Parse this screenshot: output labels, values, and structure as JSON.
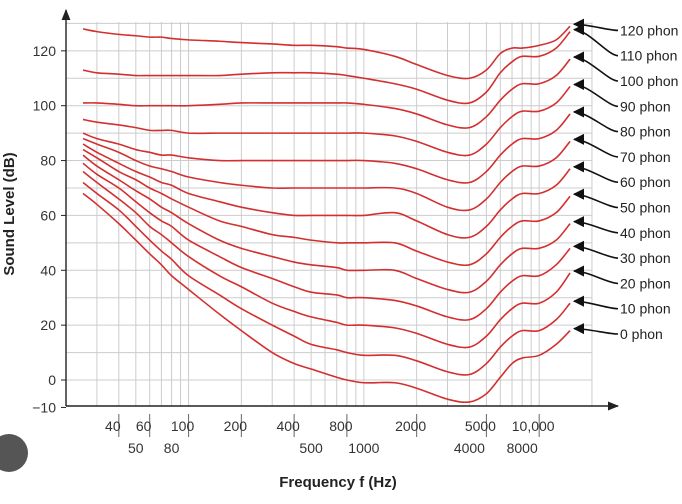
{
  "colors": {
    "curve": "#d32f2f",
    "grid": "#cccccc",
    "axis": "#222222",
    "arrow": "#111111",
    "text": "#333333"
  },
  "chart_data": {
    "type": "line",
    "title": "",
    "xlabel": "Frequency f (Hz)",
    "ylabel": "Sound Level (dB)",
    "x_scale": "log",
    "xlim": [
      20,
      20000
    ],
    "ylim": [
      -10,
      130
    ],
    "grid": true,
    "x_ticks_upper": [
      "40",
      "60",
      "100",
      "200",
      "400",
      "800",
      "2000",
      "5000",
      "10,000"
    ],
    "x_ticks_lower": [
      "50",
      "80",
      "500",
      "1000",
      "4000",
      "8000"
    ],
    "y_ticks": [
      "120",
      "100",
      "80",
      "60",
      "40",
      "20",
      "0",
      "−10"
    ],
    "x": [
      25,
      30,
      40,
      50,
      60,
      70,
      80,
      100,
      150,
      200,
      300,
      400,
      500,
      700,
      800,
      1000,
      1500,
      2000,
      3000,
      4000,
      5000,
      6000,
      7000,
      8000,
      10000,
      12500,
      15000
    ],
    "series": [
      {
        "name": "0 phon",
        "values": [
          68,
          64,
          57,
          51,
          46,
          42,
          38,
          33,
          24,
          18,
          10,
          6,
          4,
          1,
          0,
          -1,
          -1,
          -3,
          -7,
          -8,
          -5,
          1,
          6,
          8,
          9,
          13,
          18
        ]
      },
      {
        "name": "10 phon",
        "values": [
          72,
          68,
          62,
          56,
          51,
          47,
          44,
          38,
          31,
          26,
          20,
          16,
          13,
          11,
          10,
          9,
          9,
          7,
          3,
          2,
          6,
          12,
          16,
          18,
          18,
          22,
          28
        ]
      },
      {
        "name": "20 phon",
        "values": [
          76,
          72,
          66,
          61,
          56,
          53,
          50,
          45,
          38,
          34,
          28,
          25,
          23,
          21,
          20,
          20,
          19,
          17,
          13,
          12,
          16,
          22,
          26,
          28,
          28,
          32,
          39
        ]
      },
      {
        "name": "30 phon",
        "values": [
          79,
          75,
          70,
          65,
          61,
          58,
          56,
          51,
          45,
          41,
          37,
          34,
          32,
          31,
          30,
          30,
          29,
          27,
          23,
          22,
          26,
          32,
          36,
          38,
          38,
          42,
          48
        ]
      },
      {
        "name": "40 phon",
        "values": [
          82,
          78,
          73,
          69,
          66,
          63,
          61,
          57,
          51,
          48,
          45,
          43,
          42,
          41,
          40,
          40,
          40,
          37,
          33,
          32,
          36,
          42,
          46,
          48,
          48,
          51,
          57
        ]
      },
      {
        "name": "50 phon",
        "values": [
          84,
          81,
          76,
          73,
          70,
          68,
          66,
          63,
          58,
          56,
          53,
          52,
          51,
          50,
          50,
          50,
          50,
          47,
          43,
          42,
          46,
          52,
          56,
          58,
          58,
          61,
          67
        ]
      },
      {
        "name": "60 phon",
        "values": [
          86,
          83,
          79,
          76,
          74,
          72,
          71,
          68,
          65,
          63,
          61,
          60,
          60,
          60,
          60,
          60,
          61,
          58,
          53,
          52,
          56,
          62,
          66,
          68,
          68,
          71,
          77
        ]
      },
      {
        "name": "70 phon",
        "values": [
          88,
          86,
          83,
          80,
          78,
          77,
          76,
          74,
          72,
          71,
          70,
          70,
          70,
          70,
          70,
          70,
          70,
          68,
          63,
          62,
          66,
          72,
          76,
          78,
          78,
          81,
          87
        ]
      },
      {
        "name": "80 phon",
        "values": [
          90,
          88,
          86,
          84,
          83,
          82,
          82,
          81,
          80,
          80,
          80,
          80,
          80,
          80,
          80,
          80,
          79,
          77,
          73,
          72,
          76,
          82,
          86,
          88,
          88,
          91,
          97
        ]
      },
      {
        "name": "90 phon",
        "values": [
          95,
          94,
          93,
          92,
          91,
          91,
          91,
          90,
          90,
          90,
          90,
          90,
          90,
          90,
          90,
          90,
          89,
          87,
          83,
          82,
          86,
          92,
          96,
          98,
          98,
          101,
          107
        ]
      },
      {
        "name": "100 phon",
        "values": [
          101,
          101,
          100.5,
          100,
          100,
          100,
          100,
          100,
          100.5,
          101,
          101,
          101,
          101,
          101,
          101,
          100.5,
          99,
          97,
          93,
          92,
          96,
          102,
          106,
          108,
          108,
          111,
          117
        ]
      },
      {
        "name": "110 phon",
        "values": [
          113,
          112,
          111.5,
          111,
          111,
          111,
          111,
          111,
          111,
          111.5,
          112,
          112,
          112,
          111.5,
          111,
          110,
          108,
          106,
          102,
          101,
          105,
          112,
          116,
          118,
          118,
          121,
          127
        ]
      },
      {
        "name": "120 phon",
        "values": [
          128,
          127,
          126,
          125.5,
          125,
          125,
          124.5,
          124,
          123.5,
          123,
          122.5,
          122,
          122,
          121.5,
          121,
          120.5,
          118,
          115,
          111,
          110,
          113,
          119,
          121,
          121,
          122,
          124,
          129
        ]
      }
    ]
  }
}
